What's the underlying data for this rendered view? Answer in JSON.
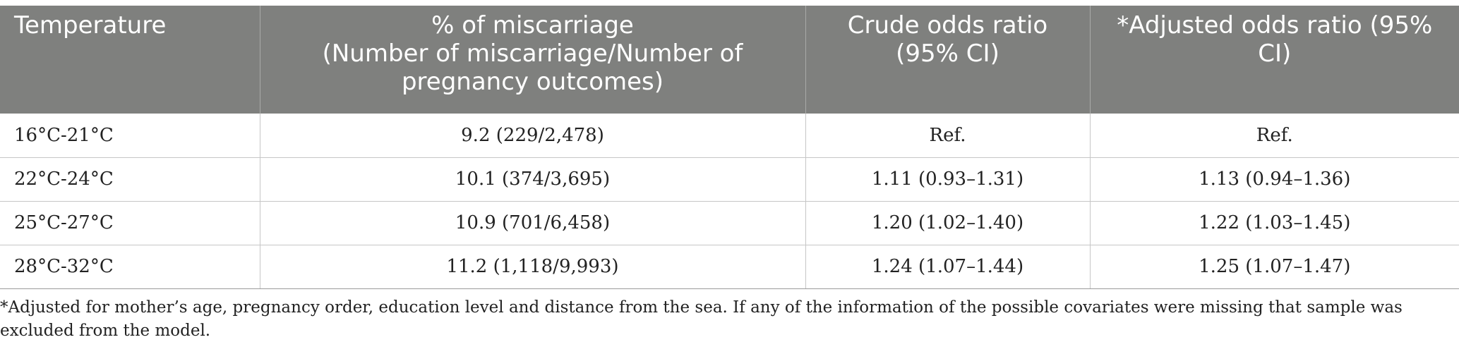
{
  "table": {
    "headers": [
      "Temperature",
      "% of miscarriage\n(Number of miscarriage/Number of pregnancy outcomes)",
      "Crude odds ratio (95% CI)",
      "*Adjusted odds ratio (95% CI)"
    ],
    "header_lines": {
      "col2_line1": "% of miscarriage",
      "col2_line2": "(Number of miscarriage/Number of pregnancy outcomes)"
    },
    "rows": [
      [
        "16°C-21°C",
        "9.2 (229/2,478)",
        "Ref.",
        "Ref."
      ],
      [
        "22°C-24°C",
        "10.1 (374/3,695)",
        "1.11 (0.93–1.31)",
        "1.13 (0.94–1.36)"
      ],
      [
        "25°C-27°C",
        "10.9 (701/6,458)",
        "1.20 (1.02–1.40)",
        "1.22 (1.03–1.45)"
      ],
      [
        "28°C-32°C",
        "11.2 (1,118/9,993)",
        "1.24 (1.07–1.44)",
        "1.25 (1.07–1.47)"
      ]
    ]
  },
  "footnote": "*Adjusted for mother’s age, pregnancy order, education level and distance from the sea. If any of the information of the possible covariates were missing that sample was excluded from the model."
}
